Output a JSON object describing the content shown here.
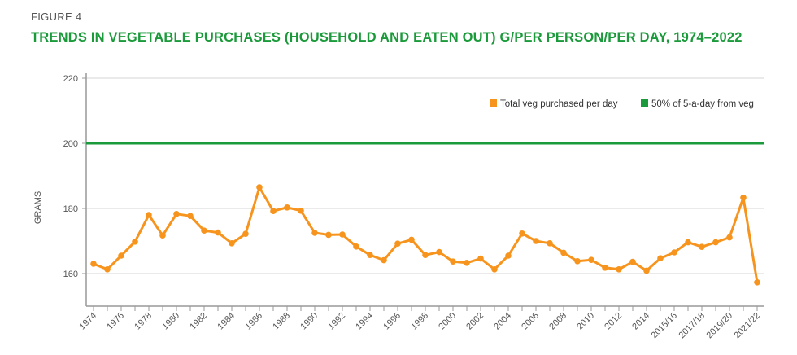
{
  "figure_label": "FIGURE 4",
  "chart_data": {
    "type": "line",
    "title": "TRENDS IN VEGETABLE PURCHASES (HOUSEHOLD AND EATEN OUT) G/PER PERSON/PER DAY, 1974–2022",
    "xlabel": "",
    "ylabel": "GRAMS",
    "ylim": [
      150,
      222
    ],
    "yticks": [
      160,
      180,
      200,
      220
    ],
    "grid": true,
    "legend_position": "top-right",
    "categories": [
      "1974",
      "1975",
      "1976",
      "1977",
      "1978",
      "1979",
      "1980",
      "1981",
      "1982",
      "1983",
      "1984",
      "1985",
      "1986",
      "1987",
      "1988",
      "1989",
      "1990",
      "1991",
      "1992",
      "1993",
      "1994",
      "1995",
      "1996",
      "1997",
      "1998",
      "1999",
      "2000",
      "2001",
      "2002",
      "2003",
      "2004",
      "2005",
      "2006",
      "2007",
      "2008",
      "2009",
      "2010",
      "2011",
      "2012",
      "2013",
      "2014",
      "2014/15",
      "2015/16",
      "2016/17",
      "2017/18",
      "2018/19",
      "2019/20",
      "2020/21",
      "2021/22"
    ],
    "tick_labels": [
      "1974",
      "1976",
      "1978",
      "1980",
      "1982",
      "1984",
      "1986",
      "1988",
      "1990",
      "1992",
      "1994",
      "1996",
      "1998",
      "2000",
      "2002",
      "2004",
      "2006",
      "2008",
      "2010",
      "2012",
      "2014",
      "2015/16",
      "2017/18",
      "2019/20",
      "2021/22"
    ],
    "series": [
      {
        "name": "Total veg purchased per day",
        "color": "#f7941d",
        "values": [
          163,
          161.3,
          165.5,
          169.8,
          178,
          171.7,
          178.3,
          177.7,
          173.2,
          172.6,
          169.3,
          172.2,
          186.5,
          179.2,
          180.3,
          179.3,
          172.5,
          171.9,
          172,
          168.3,
          165.7,
          164.1,
          169.2,
          170.4,
          165.7,
          166.6,
          163.7,
          163.3,
          164.6,
          161.3,
          165.5,
          172.3,
          170,
          169.3,
          166.4,
          163.8,
          164.2,
          161.8,
          161.3,
          163.6,
          160.9,
          164.7,
          166.5,
          169.6,
          168.2,
          169.6,
          171.1,
          183.3,
          157.3
        ]
      },
      {
        "name": "50% of 5-a-day from veg",
        "color": "#1a9a3a",
        "constant": 200
      }
    ]
  }
}
